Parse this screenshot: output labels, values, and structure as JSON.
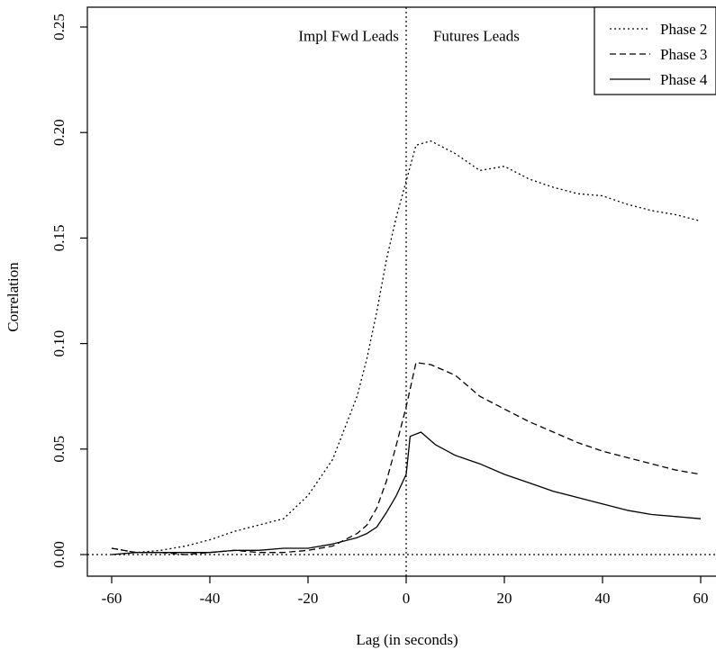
{
  "chart_data": {
    "type": "line",
    "title": "",
    "xlabel": "Lag (in seconds)",
    "ylabel": "Correlation",
    "xlim": [
      -64,
      62
    ],
    "ylim": [
      -0.01,
      0.255
    ],
    "xticks": [
      -60,
      -40,
      -20,
      0,
      20,
      40,
      60
    ],
    "xtick_labels": [
      "-60",
      "-40",
      "-20",
      "0",
      "20",
      "40",
      "60"
    ],
    "yticks": [
      0.0,
      0.05,
      0.1,
      0.15,
      0.2,
      0.25
    ],
    "ytick_labels": [
      "0.00",
      "0.05",
      "0.10",
      "0.15",
      "0.20",
      "0.25"
    ],
    "grid": false,
    "legend_position": "top-right",
    "reference_lines": {
      "x": 0,
      "y": 0,
      "style": "dotted"
    },
    "annotations": [
      {
        "text": "Impl Fwd Leads",
        "x": -1.5,
        "y": 0.246,
        "anchor": "end"
      },
      {
        "text": "Futures Leads",
        "x": 5.5,
        "y": 0.246,
        "anchor": "start"
      }
    ],
    "series": [
      {
        "name": "Phase 2",
        "style": "dotted",
        "x": [
          -60,
          -55,
          -50,
          -45,
          -40,
          -35,
          -30,
          -25,
          -20,
          -15,
          -10,
          -8,
          -6,
          -4,
          -2,
          0,
          2,
          5,
          10,
          15,
          20,
          25,
          30,
          35,
          40,
          45,
          50,
          55,
          60
        ],
        "y": [
          0.003,
          0.001,
          0.002,
          0.004,
          0.007,
          0.011,
          0.014,
          0.017,
          0.028,
          0.045,
          0.075,
          0.093,
          0.115,
          0.14,
          0.16,
          0.177,
          0.194,
          0.196,
          0.19,
          0.182,
          0.184,
          0.178,
          0.174,
          0.171,
          0.17,
          0.166,
          0.163,
          0.161,
          0.158
        ]
      },
      {
        "name": "Phase 3",
        "style": "dashed",
        "x": [
          -60,
          -55,
          -50,
          -45,
          -40,
          -35,
          -30,
          -25,
          -20,
          -15,
          -10,
          -8,
          -6,
          -4,
          -2,
          0,
          2,
          5,
          10,
          15,
          20,
          25,
          30,
          35,
          40,
          45,
          50,
          55,
          60
        ],
        "y": [
          0.003,
          0.001,
          0.001,
          0.0,
          0.001,
          0.002,
          0.001,
          0.001,
          0.002,
          0.004,
          0.01,
          0.014,
          0.022,
          0.035,
          0.052,
          0.07,
          0.091,
          0.09,
          0.085,
          0.075,
          0.069,
          0.063,
          0.058,
          0.053,
          0.049,
          0.046,
          0.043,
          0.04,
          0.038
        ]
      },
      {
        "name": "Phase 4",
        "style": "solid",
        "x": [
          -60,
          -55,
          -50,
          -45,
          -40,
          -35,
          -30,
          -25,
          -20,
          -15,
          -10,
          -8,
          -6,
          -4,
          -2,
          0,
          0.8,
          3,
          6,
          10,
          15,
          20,
          25,
          30,
          35,
          40,
          45,
          50,
          55,
          60
        ],
        "y": [
          0.0,
          0.001,
          0.001,
          0.001,
          0.001,
          0.002,
          0.002,
          0.003,
          0.003,
          0.005,
          0.008,
          0.01,
          0.013,
          0.02,
          0.028,
          0.038,
          0.056,
          0.058,
          0.052,
          0.047,
          0.043,
          0.038,
          0.034,
          0.03,
          0.027,
          0.024,
          0.021,
          0.019,
          0.018,
          0.017
        ]
      }
    ]
  }
}
